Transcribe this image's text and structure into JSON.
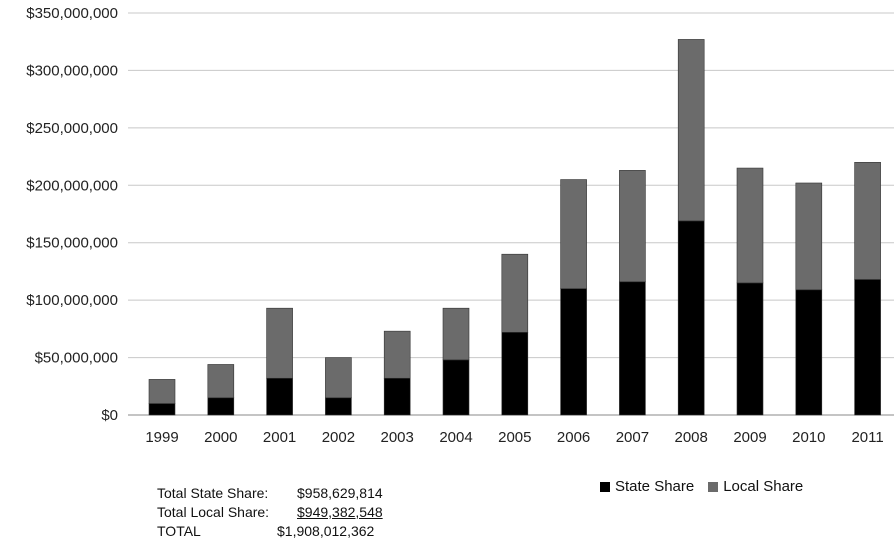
{
  "chart_data": {
    "type": "bar",
    "stacked": true,
    "categories": [
      "1999",
      "2000",
      "2001",
      "2002",
      "2003",
      "2004",
      "2005",
      "2006",
      "2007",
      "2008",
      "2009",
      "2010",
      "2011"
    ],
    "series": [
      {
        "name": "State Share",
        "color": "#000000",
        "values": [
          10000000,
          15000000,
          32000000,
          15000000,
          32000000,
          48000000,
          72000000,
          110000000,
          116000000,
          169000000,
          115000000,
          109000000,
          118000000
        ]
      },
      {
        "name": "Local Share",
        "color": "#6b6b6b",
        "values": [
          21000000,
          29000000,
          61000000,
          35000000,
          41000000,
          45000000,
          68000000,
          95000000,
          97000000,
          158000000,
          100000000,
          93000000,
          102000000
        ]
      }
    ],
    "ylim": [
      0,
      350000000
    ],
    "yticks": [
      0,
      50000000,
      100000000,
      150000000,
      200000000,
      250000000,
      300000000,
      350000000
    ],
    "ytick_labels": [
      "$0",
      "$50,000,000",
      "$100,000,000",
      "$150,000,000",
      "$200,000,000",
      "$250,000,000",
      "$300,000,000",
      "$350,000,000"
    ],
    "grid": true,
    "legend_position": "bottom-right"
  },
  "totals": {
    "state_label": "Total State Share:",
    "state_value": "$958,629,814",
    "local_label": "Total Local Share:",
    "local_value": "$949,382,548",
    "total_label": "TOTAL",
    "total_value": "$1,908,012,362"
  }
}
